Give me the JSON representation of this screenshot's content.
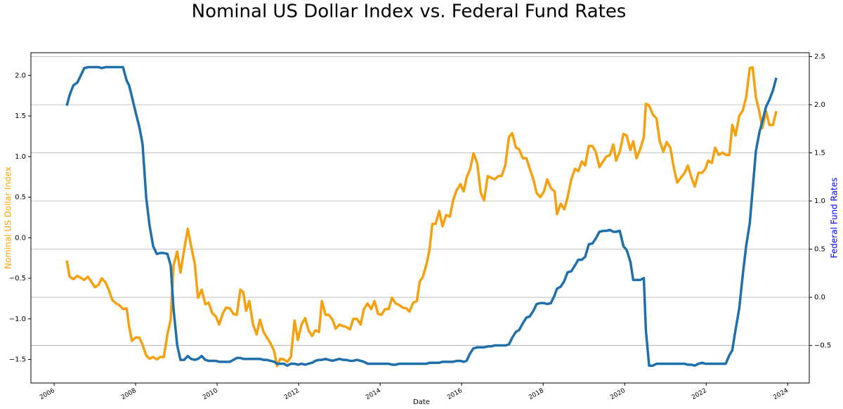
{
  "chart_data": {
    "type": "line",
    "title": "Nominal US Dollar Index vs. Federal Fund Rates",
    "xlabel": "Date",
    "ylabel": "Nominal US Dollar Index",
    "y2label": "Federal Fund Rates",
    "ylabel_color": "#ffa500",
    "y2label_color": "#0000ff",
    "xlim": [
      2005.43,
      2024.53
    ],
    "ylim": [
      -1.79,
      2.28
    ],
    "y2lim": [
      -0.89,
      2.54
    ],
    "xticks": [
      2006,
      2008,
      2010,
      2012,
      2014,
      2016,
      2018,
      2020,
      2022,
      2024
    ],
    "yticks": [
      {
        "value": -1.5,
        "label": "−1.5"
      },
      {
        "value": -1.0,
        "label": "−1.0"
      },
      {
        "value": -0.5,
        "label": "−0.5"
      },
      {
        "value": 0.0,
        "label": "0.0"
      },
      {
        "value": 0.5,
        "label": "0.5"
      },
      {
        "value": 1.0,
        "label": "1.0"
      },
      {
        "value": 1.5,
        "label": "1.5"
      },
      {
        "value": 2.0,
        "label": "2.0"
      }
    ],
    "y2ticks": [
      {
        "value": -0.5,
        "label": "−0.5"
      },
      {
        "value": 0.0,
        "label": "0.0"
      },
      {
        "value": 0.5,
        "label": "0.5"
      },
      {
        "value": 1.0,
        "label": "1.0"
      },
      {
        "value": 1.5,
        "label": "1.5"
      },
      {
        "value": 2.0,
        "label": "2.0"
      },
      {
        "value": 2.5,
        "label": "2.5"
      }
    ],
    "grid_axis": "y2",
    "x": [
      2006.31,
      2006.38,
      2006.47,
      2006.57,
      2006.74,
      2006.83,
      2007.0,
      2007.09,
      2007.17,
      2007.26,
      2007.34,
      2007.43,
      2007.52,
      2007.6,
      2007.69,
      2007.78,
      2007.84,
      2007.91,
      2008.0,
      2008.09,
      2008.17,
      2008.26,
      2008.34,
      2008.43,
      2008.52,
      2008.6,
      2008.69,
      2008.78,
      2008.86,
      2008.93,
      2009.02,
      2009.1,
      2009.19,
      2009.28,
      2009.36,
      2009.45,
      2009.53,
      2009.62,
      2009.71,
      2009.79,
      2009.88,
      2009.97,
      2010.05,
      2010.14,
      2010.22,
      2010.31,
      2010.4,
      2010.48,
      2010.57,
      2010.64,
      2010.71,
      2010.79,
      2010.88,
      2010.97,
      2011.05,
      2011.14,
      2011.22,
      2011.31,
      2011.4,
      2011.47,
      2011.55,
      2011.64,
      2011.72,
      2011.81,
      2011.9,
      2011.98,
      2012.07,
      2012.16,
      2012.24,
      2012.33,
      2012.41,
      2012.5,
      2012.57,
      2012.66,
      2012.74,
      2012.83,
      2012.91,
      2013.0,
      2013.09,
      2013.17,
      2013.26,
      2013.34,
      2013.43,
      2013.52,
      2013.6,
      2013.69,
      2013.78,
      2013.86,
      2013.95,
      2014.03,
      2014.12,
      2014.21,
      2014.29,
      2014.38,
      2014.47,
      2014.55,
      2014.64,
      2014.72,
      2014.81,
      2014.9,
      2014.97,
      2015.05,
      2015.14,
      2015.21,
      2015.28,
      2015.36,
      2015.45,
      2015.53,
      2015.62,
      2015.71,
      2015.79,
      2015.88,
      2015.97,
      2016.05,
      2016.12,
      2016.21,
      2016.29,
      2016.38,
      2016.47,
      2016.55,
      2016.64,
      2016.72,
      2016.81,
      2016.9,
      2016.98,
      2017.07,
      2017.16,
      2017.24,
      2017.33,
      2017.41,
      2017.5,
      2017.59,
      2017.67,
      2017.76,
      2017.84,
      2017.93,
      2018.02,
      2018.1,
      2018.19,
      2018.28,
      2018.34,
      2018.43,
      2018.52,
      2018.6,
      2018.69,
      2018.78,
      2018.86,
      2018.95,
      2019.03,
      2019.12,
      2019.21,
      2019.29,
      2019.38,
      2019.47,
      2019.55,
      2019.64,
      2019.72,
      2019.79,
      2019.88,
      2019.97,
      2020.05,
      2020.14,
      2020.21,
      2020.29,
      2020.38,
      2020.47,
      2020.52,
      2020.6,
      2020.69,
      2020.78,
      2020.86,
      2020.95,
      2021.03,
      2021.12,
      2021.21,
      2021.29,
      2021.38,
      2021.47,
      2021.55,
      2021.64,
      2021.72,
      2021.81,
      2021.9,
      2021.98,
      2022.05,
      2022.14,
      2022.22,
      2022.31,
      2022.4,
      2022.48,
      2022.57,
      2022.64,
      2022.72,
      2022.81,
      2022.9,
      2022.98,
      2023.07,
      2023.14,
      2023.22,
      2023.31,
      2023.38,
      2023.47,
      2023.55,
      2023.64,
      2023.72
    ],
    "series": [
      {
        "name": "Nominal US Dollar Index",
        "color": "#f5a00f",
        "axis": "y",
        "values": [
          -0.28,
          -0.48,
          -0.51,
          -0.47,
          -0.52,
          -0.48,
          -0.61,
          -0.58,
          -0.5,
          -0.55,
          -0.64,
          -0.77,
          -0.81,
          -0.83,
          -0.88,
          -0.87,
          -1.1,
          -1.27,
          -1.23,
          -1.23,
          -1.32,
          -1.45,
          -1.49,
          -1.47,
          -1.5,
          -1.47,
          -1.47,
          -1.19,
          -1.01,
          -0.34,
          -0.17,
          -0.43,
          -0.15,
          0.11,
          -0.1,
          -0.32,
          -0.74,
          -0.64,
          -0.82,
          -0.8,
          -0.93,
          -0.97,
          -1.07,
          -0.93,
          -0.86,
          -0.87,
          -0.94,
          -0.95,
          -0.64,
          -0.67,
          -0.9,
          -0.78,
          -1.07,
          -1.19,
          -1.01,
          -1.16,
          -1.23,
          -1.3,
          -1.4,
          -1.58,
          -1.49,
          -1.5,
          -1.53,
          -1.47,
          -1.02,
          -1.26,
          -1.07,
          -0.99,
          -1.14,
          -1.21,
          -1.14,
          -1.16,
          -0.78,
          -0.95,
          -0.95,
          -1.01,
          -1.12,
          -1.07,
          -1.09,
          -1.1,
          -1.13,
          -1.0,
          -1.0,
          -1.07,
          -0.88,
          -0.81,
          -0.88,
          -0.78,
          -0.94,
          -0.95,
          -0.88,
          -0.88,
          -0.74,
          -0.81,
          -0.83,
          -0.86,
          -0.87,
          -0.91,
          -0.8,
          -0.78,
          -0.54,
          -0.48,
          -0.32,
          -0.15,
          0.17,
          0.17,
          0.33,
          0.14,
          0.28,
          0.26,
          0.46,
          0.59,
          0.66,
          0.57,
          0.74,
          0.85,
          1.04,
          0.92,
          0.55,
          0.46,
          0.76,
          0.74,
          0.72,
          0.76,
          0.76,
          0.89,
          1.24,
          1.29,
          1.11,
          1.09,
          0.98,
          0.98,
          0.85,
          0.72,
          0.55,
          0.5,
          0.57,
          0.72,
          0.61,
          0.57,
          0.29,
          0.42,
          0.35,
          0.5,
          0.72,
          0.85,
          0.82,
          0.94,
          0.89,
          1.13,
          1.13,
          1.06,
          0.87,
          0.94,
          1.0,
          1.02,
          1.15,
          0.95,
          1.06,
          1.28,
          1.26,
          1.08,
          1.19,
          0.98,
          1.09,
          1.24,
          1.65,
          1.63,
          1.52,
          1.47,
          1.19,
          1.06,
          1.18,
          1.11,
          0.85,
          0.68,
          0.74,
          0.8,
          0.89,
          0.74,
          0.63,
          0.8,
          0.8,
          0.85,
          0.95,
          0.92,
          1.11,
          1.02,
          1.05,
          1.02,
          1.02,
          1.39,
          1.26,
          1.5,
          1.57,
          1.73,
          2.09,
          2.1,
          1.73,
          1.54,
          1.35,
          1.56,
          1.39,
          1.39,
          1.56
        ]
      },
      {
        "name": "Federal Fund Rates",
        "color": "#1f6fab",
        "axis": "y2",
        "values": [
          1.99,
          2.1,
          2.2,
          2.23,
          2.38,
          2.39,
          2.39,
          2.39,
          2.38,
          2.39,
          2.39,
          2.39,
          2.39,
          2.39,
          2.39,
          2.25,
          2.2,
          2.08,
          1.92,
          1.77,
          1.59,
          1.03,
          0.75,
          0.53,
          0.45,
          0.46,
          0.46,
          0.45,
          0.33,
          -0.12,
          -0.5,
          -0.65,
          -0.65,
          -0.61,
          -0.64,
          -0.65,
          -0.64,
          -0.61,
          -0.65,
          -0.66,
          -0.66,
          -0.66,
          -0.67,
          -0.67,
          -0.67,
          -0.67,
          -0.65,
          -0.63,
          -0.63,
          -0.64,
          -0.64,
          -0.64,
          -0.64,
          -0.64,
          -0.64,
          -0.65,
          -0.65,
          -0.66,
          -0.67,
          -0.69,
          -0.69,
          -0.69,
          -0.71,
          -0.69,
          -0.69,
          -0.7,
          -0.69,
          -0.7,
          -0.69,
          -0.68,
          -0.66,
          -0.65,
          -0.65,
          -0.64,
          -0.65,
          -0.66,
          -0.65,
          -0.64,
          -0.65,
          -0.65,
          -0.66,
          -0.66,
          -0.65,
          -0.66,
          -0.67,
          -0.69,
          -0.69,
          -0.69,
          -0.69,
          -0.69,
          -0.69,
          -0.69,
          -0.7,
          -0.7,
          -0.69,
          -0.69,
          -0.69,
          -0.69,
          -0.69,
          -0.69,
          -0.69,
          -0.69,
          -0.69,
          -0.68,
          -0.68,
          -0.68,
          -0.68,
          -0.67,
          -0.67,
          -0.67,
          -0.67,
          -0.66,
          -0.66,
          -0.67,
          -0.66,
          -0.58,
          -0.53,
          -0.52,
          -0.52,
          -0.52,
          -0.51,
          -0.51,
          -0.5,
          -0.5,
          -0.5,
          -0.5,
          -0.49,
          -0.42,
          -0.36,
          -0.34,
          -0.27,
          -0.21,
          -0.2,
          -0.14,
          -0.07,
          -0.06,
          -0.06,
          -0.07,
          -0.06,
          0.02,
          0.09,
          0.11,
          0.17,
          0.26,
          0.27,
          0.33,
          0.39,
          0.39,
          0.42,
          0.55,
          0.56,
          0.61,
          0.68,
          0.69,
          0.69,
          0.7,
          0.68,
          0.68,
          0.69,
          0.53,
          0.49,
          0.37,
          0.18,
          0.18,
          0.18,
          0.2,
          -0.34,
          -0.71,
          -0.71,
          -0.69,
          -0.69,
          -0.69,
          -0.69,
          -0.69,
          -0.69,
          -0.69,
          -0.69,
          -0.69,
          -0.7,
          -0.7,
          -0.71,
          -0.69,
          -0.68,
          -0.69,
          -0.69,
          -0.69,
          -0.69,
          -0.69,
          -0.69,
          -0.69,
          -0.6,
          -0.55,
          -0.34,
          -0.12,
          0.24,
          0.53,
          0.77,
          1.12,
          1.52,
          1.72,
          1.83,
          1.98,
          2.05,
          2.15,
          2.28
        ]
      }
    ]
  }
}
